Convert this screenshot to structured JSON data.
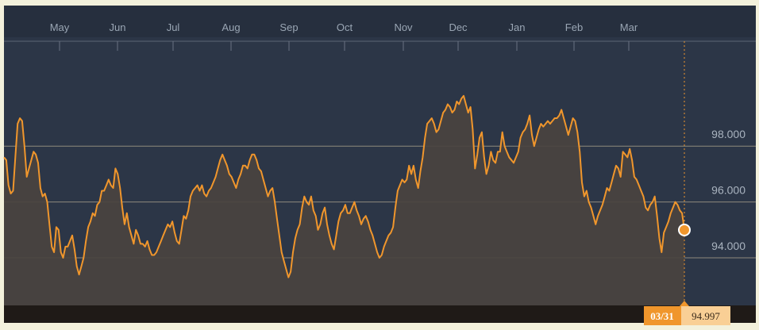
{
  "colors": {
    "background": "#2c3647",
    "header": "#262f3e",
    "line": "#f0962c",
    "area": "#4a4340",
    "gridline": "#8f8a7c",
    "badge_date_bg": "#f0962c",
    "badge_value_bg": "#f9cf95"
  },
  "chart_data": {
    "type": "area",
    "title": "",
    "xlabel": "",
    "ylabel": "",
    "x_axis_months": [
      "May",
      "Jun",
      "Jul",
      "Aug",
      "Sep",
      "Oct",
      "Nov",
      "Dec",
      "Jan",
      "Feb",
      "Mar"
    ],
    "y_ticks": [
      "94.000",
      "96.000",
      "98.000"
    ],
    "ylim": [
      92.0,
      100.0
    ],
    "grid": "horizontal",
    "last_point": {
      "date": "03/31",
      "value": "94.997"
    },
    "series": [
      {
        "values": [
          97.6,
          97.5,
          96.6,
          96.3,
          96.4,
          97.6,
          98.8,
          99.0,
          98.9,
          98.0,
          96.9,
          97.2,
          97.5,
          97.8,
          97.7,
          97.4,
          96.5,
          96.2,
          96.3,
          96.0,
          95.2,
          94.4,
          94.2,
          95.1,
          95.0,
          94.2,
          94.0,
          94.4,
          94.4,
          94.6,
          94.8,
          94.3,
          93.7,
          93.4,
          93.7,
          94.0,
          94.6,
          95.1,
          95.3,
          95.6,
          95.5,
          95.9,
          96.0,
          96.4,
          96.4,
          96.6,
          96.8,
          96.6,
          96.5,
          97.2,
          97.0,
          96.5,
          95.8,
          95.2,
          95.6,
          95.1,
          94.8,
          94.5,
          95.0,
          94.8,
          94.5,
          94.5,
          94.4,
          94.6,
          94.3,
          94.1,
          94.1,
          94.2,
          94.4,
          94.6,
          94.8,
          95.0,
          95.2,
          95.1,
          95.3,
          94.9,
          94.6,
          94.5,
          95.0,
          95.5,
          95.4,
          95.7,
          96.2,
          96.4,
          96.5,
          96.6,
          96.4,
          96.6,
          96.3,
          96.2,
          96.4,
          96.5,
          96.7,
          96.9,
          97.2,
          97.5,
          97.7,
          97.5,
          97.3,
          97.0,
          96.9,
          96.7,
          96.5,
          96.8,
          97.0,
          97.3,
          97.3,
          97.2,
          97.5,
          97.7,
          97.7,
          97.5,
          97.2,
          97.1,
          96.8,
          96.5,
          96.2,
          96.4,
          96.5,
          96.0,
          95.4,
          94.8,
          94.2,
          93.9,
          93.6,
          93.3,
          93.5,
          94.2,
          94.7,
          95.0,
          95.2,
          95.8,
          96.2,
          96.0,
          95.9,
          96.2,
          95.7,
          95.5,
          95.0,
          95.2,
          95.6,
          95.8,
          95.2,
          94.8,
          94.5,
          94.3,
          94.8,
          95.3,
          95.6,
          95.7,
          95.9,
          95.6,
          95.6,
          95.8,
          96.0,
          95.7,
          95.5,
          95.2,
          95.4,
          95.5,
          95.3,
          95.0,
          94.8,
          94.5,
          94.2,
          94.0,
          94.1,
          94.4,
          94.6,
          94.8,
          94.9,
          95.1,
          95.8,
          96.4,
          96.6,
          96.8,
          96.7,
          96.8,
          97.3,
          97.0,
          97.3,
          96.8,
          96.5,
          97.1,
          97.6,
          98.3,
          98.8,
          98.9,
          99.0,
          98.8,
          98.5,
          98.6,
          98.9,
          99.2,
          99.3,
          99.5,
          99.4,
          99.2,
          99.3,
          99.6,
          99.5,
          99.7,
          99.8,
          99.5,
          99.2,
          99.4,
          98.6,
          97.2,
          97.7,
          98.3,
          98.5,
          97.6,
          97.0,
          97.3,
          97.8,
          97.5,
          97.4,
          97.8,
          97.8,
          98.5,
          98.0,
          97.8,
          97.6,
          97.5,
          97.4,
          97.6,
          97.8,
          98.3,
          98.5,
          98.6,
          98.8,
          99.1,
          98.4,
          98.0,
          98.3,
          98.6,
          98.8,
          98.7,
          98.8,
          98.9,
          98.8,
          98.9,
          99.0,
          99.0,
          99.1,
          99.3,
          99.0,
          98.7,
          98.4,
          98.7,
          99.0,
          98.9,
          98.5,
          97.8,
          96.7,
          96.2,
          96.4,
          96.0,
          95.8,
          95.5,
          95.2,
          95.5,
          95.7,
          95.9,
          96.2,
          96.5,
          96.4,
          96.7,
          97.0,
          97.3,
          97.2,
          96.9,
          97.8,
          97.7,
          97.6,
          97.9,
          97.5,
          96.9,
          96.8,
          96.6,
          96.4,
          96.2,
          95.8,
          95.7,
          95.9,
          96.0,
          96.2,
          95.5,
          94.7,
          94.2,
          94.9,
          95.1,
          95.3,
          95.6,
          95.8,
          96.0,
          95.9,
          95.7,
          95.6,
          94.997
        ]
      }
    ]
  }
}
